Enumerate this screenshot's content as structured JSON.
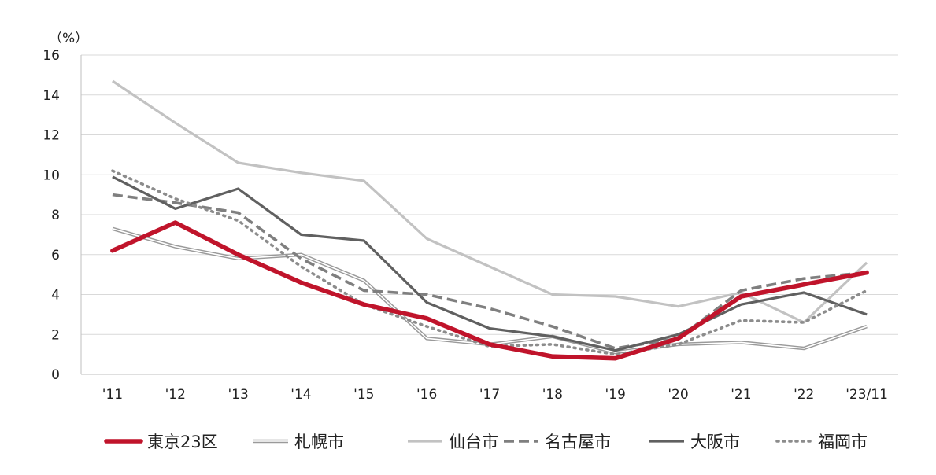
{
  "chart_data": {
    "type": "line",
    "title": "",
    "xlabel": "",
    "ylabel": "",
    "y_unit_label": "（%）",
    "ylim": [
      0,
      16
    ],
    "y_ticks": [
      0,
      2,
      4,
      6,
      8,
      10,
      12,
      14,
      16
    ],
    "grid": "horizontal",
    "legend_position": "bottom",
    "categories": [
      "'11",
      "'12",
      "'13",
      "'14",
      "'15",
      "'16",
      "'17",
      "'18",
      "'19",
      "'20",
      "'21",
      "'22",
      "'23/11"
    ],
    "series": [
      {
        "name": "札幌市",
        "style": "double",
        "color": "#9a9a9a",
        "values": [
          7.3,
          6.4,
          5.8,
          6.0,
          4.7,
          1.8,
          1.5,
          1.9,
          1.1,
          1.5,
          1.6,
          1.3,
          2.4
        ]
      },
      {
        "name": "仙台市",
        "style": "solid",
        "color": "#c2c2c2",
        "values": [
          14.7,
          12.6,
          10.6,
          10.1,
          9.7,
          6.8,
          5.4,
          4.0,
          3.9,
          3.4,
          4.1,
          2.6,
          5.6
        ]
      },
      {
        "name": "名古屋市",
        "style": "dashed",
        "color": "#7f7f7f",
        "values": [
          9.0,
          8.6,
          8.1,
          5.8,
          4.2,
          4.0,
          3.3,
          2.4,
          1.3,
          1.8,
          4.2,
          4.8,
          5.1
        ]
      },
      {
        "name": "大阪市",
        "style": "solid",
        "color": "#606060",
        "values": [
          9.9,
          8.3,
          9.3,
          7.0,
          6.7,
          3.6,
          2.3,
          1.9,
          1.2,
          2.0,
          3.5,
          4.1,
          3.0
        ]
      },
      {
        "name": "福岡市",
        "style": "dotted",
        "color": "#8c8c8c",
        "values": [
          10.2,
          8.8,
          7.7,
          5.4,
          3.5,
          2.4,
          1.4,
          1.5,
          1.0,
          1.5,
          2.7,
          2.6,
          4.2
        ]
      },
      {
        "name": "東京23区",
        "style": "thick",
        "color": "#c0142b",
        "values": [
          6.2,
          7.6,
          6.0,
          4.6,
          3.5,
          2.8,
          1.5,
          0.9,
          0.8,
          1.8,
          3.9,
          4.5,
          5.1
        ]
      }
    ],
    "legend_order": [
      "東京23区",
      "札幌市",
      "仙台市",
      "名古屋市",
      "大阪市",
      "福岡市"
    ]
  }
}
